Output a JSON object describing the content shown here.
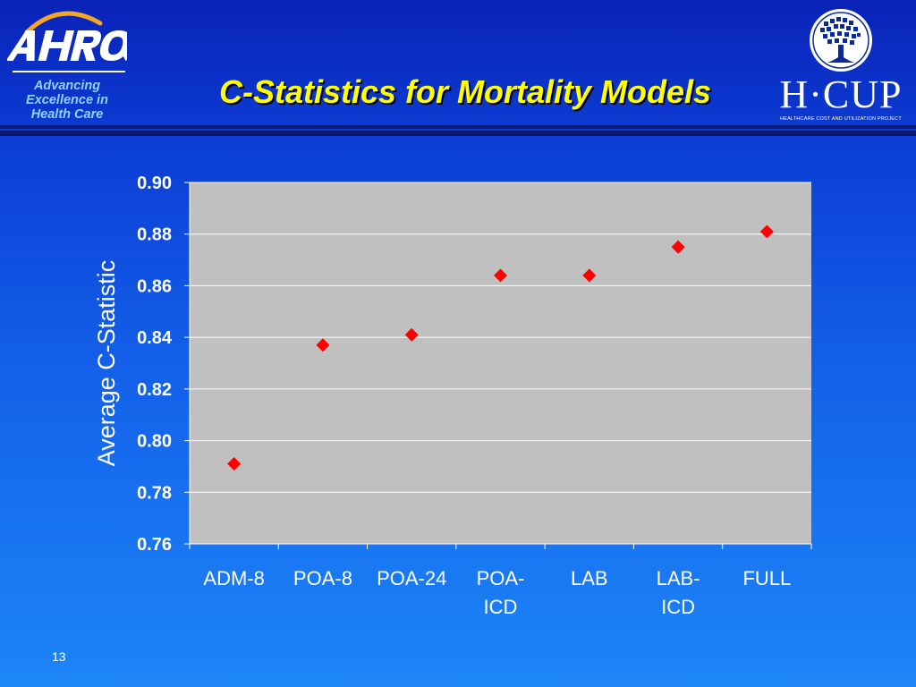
{
  "header": {
    "logo_left": {
      "name": "AHRQ",
      "tagline": [
        "Advancing",
        "Excellence in",
        "Health Care"
      ]
    },
    "title": "C-Statistics for Mortality Models",
    "logo_right": {
      "name": "H·CUP",
      "subtitle": "HEALTHCARE COST AND UTILIZATION PROJECT"
    }
  },
  "colors": {
    "title": "#ffff00",
    "marker": "#ff0000",
    "plot_background": "#c0c0c0",
    "axis_text": "#ffffff",
    "tagline": "#8fd3ff"
  },
  "chart_data": {
    "type": "scatter",
    "title": "",
    "xlabel": "",
    "ylabel": "Average C-Statistic",
    "categories": [
      "ADM-8",
      "POA-8",
      "POA-24",
      "POA-ICD",
      "LAB",
      "LAB-ICD",
      "FULL"
    ],
    "category_label_lines": [
      [
        "ADM-8"
      ],
      [
        "POA-8"
      ],
      [
        "POA-24"
      ],
      [
        "POA-",
        "ICD"
      ],
      [
        "LAB"
      ],
      [
        "LAB-",
        "ICD"
      ],
      [
        "FULL"
      ]
    ],
    "values": [
      0.791,
      0.837,
      0.841,
      0.864,
      0.864,
      0.875,
      0.881
    ],
    "ylim": [
      0.76,
      0.9
    ],
    "yticks": [
      "0.76",
      "0.78",
      "0.80",
      "0.82",
      "0.84",
      "0.86",
      "0.88",
      "0.90"
    ],
    "marker": "diamond",
    "grid": true,
    "legend": "none"
  },
  "footer": {
    "page_number": "13"
  }
}
